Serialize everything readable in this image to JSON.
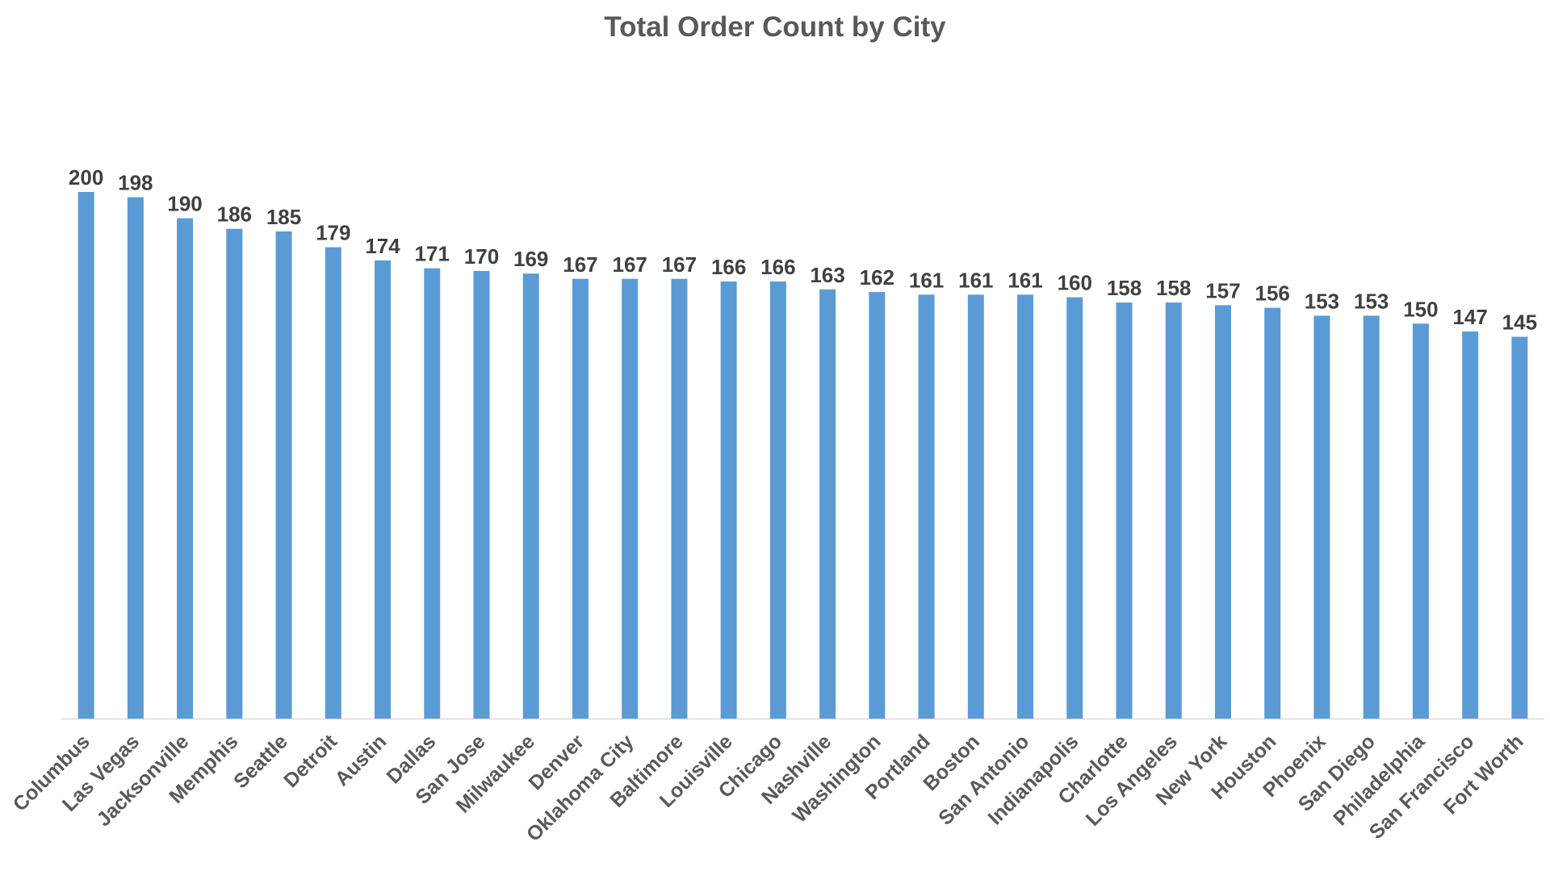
{
  "chart_data": {
    "type": "bar",
    "title": "Total Order Count by City",
    "xlabel": "",
    "ylabel": "",
    "ylim": [
      0,
      200
    ],
    "grid": false,
    "legend": "none",
    "bar_color": "#5B9BD5",
    "categories": [
      "Columbus",
      "Las Vegas",
      "Jacksonville",
      "Memphis",
      "Seattle",
      "Detroit",
      "Austin",
      "Dallas",
      "San Jose",
      "Milwaukee",
      "Denver",
      "Oklahoma City",
      "Baltimore",
      "Louisville",
      "Chicago",
      "Nashville",
      "Washington",
      "Portland",
      "Boston",
      "San Antonio",
      "Indianapolis",
      "Charlotte",
      "Los Angeles",
      "New York",
      "Houston",
      "Phoenix",
      "San Diego",
      "Philadelphia",
      "San Francisco",
      "Fort Worth"
    ],
    "values": [
      200,
      198,
      190,
      186,
      185,
      179,
      174,
      171,
      170,
      169,
      167,
      167,
      167,
      166,
      166,
      163,
      162,
      161,
      161,
      161,
      160,
      158,
      158,
      157,
      156,
      153,
      153,
      150,
      147,
      145
    ]
  }
}
